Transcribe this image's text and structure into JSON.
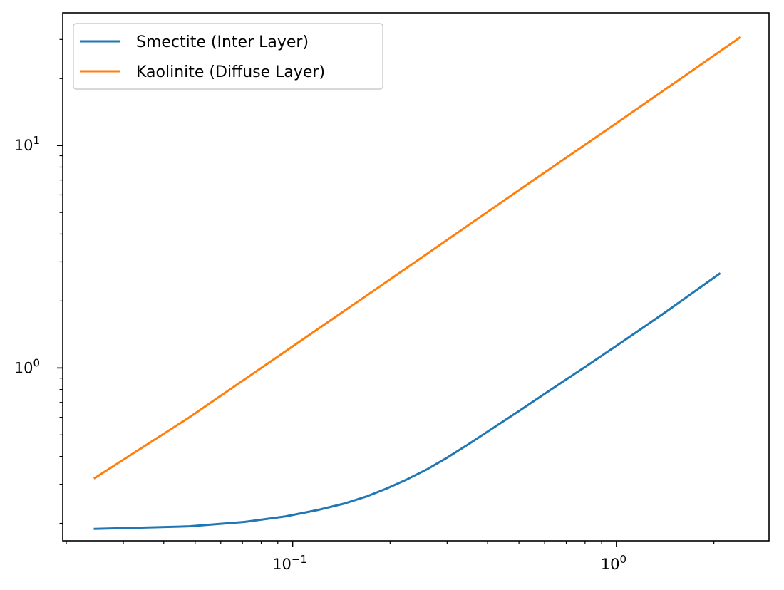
{
  "chart_data": {
    "type": "line",
    "xscale": "log",
    "yscale": "log",
    "xlim": [
      0.0195,
      2.96
    ],
    "ylim": [
      0.167,
      39.5
    ],
    "title": "",
    "xlabel": "",
    "ylabel": "",
    "grid": false,
    "legend_position": "top-left",
    "x_ticks": [
      {
        "value": 0.1,
        "base": "10",
        "exp": "−1"
      },
      {
        "value": 1,
        "base": "10",
        "exp": "0"
      }
    ],
    "y_ticks": [
      {
        "value": 1,
        "base": "10",
        "exp": "0"
      },
      {
        "value": 10,
        "base": "10",
        "exp": "1"
      }
    ],
    "series": [
      {
        "name": "Smectite (Inter Layer)",
        "color": "#1f77b4",
        "x": [
          0.0245,
          0.048,
          0.071,
          0.095,
          0.12,
          0.145,
          0.17,
          0.195,
          0.225,
          0.26,
          0.3,
          0.35,
          0.41,
          0.5,
          0.62,
          0.8,
          1.05,
          1.4,
          2.08
        ],
        "y": [
          0.189,
          0.194,
          0.203,
          0.215,
          0.23,
          0.246,
          0.265,
          0.287,
          0.315,
          0.35,
          0.395,
          0.455,
          0.53,
          0.64,
          0.79,
          1.01,
          1.32,
          1.76,
          2.65
        ]
      },
      {
        "name": "Kaolinite (Diffuse Layer)",
        "color": "#ff7f0e",
        "x": [
          0.0245,
          0.048,
          0.1,
          0.2,
          0.5,
          1.0,
          2.4
        ],
        "y": [
          0.32,
          0.6,
          1.25,
          2.5,
          6.3,
          12.6,
          30.5
        ]
      }
    ]
  }
}
